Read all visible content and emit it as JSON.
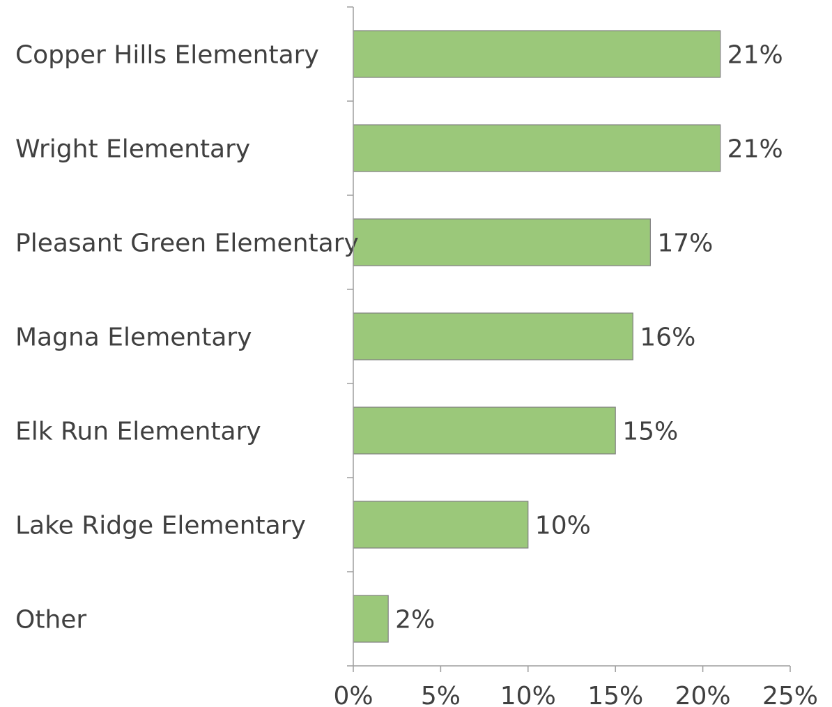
{
  "chart_data": {
    "type": "bar",
    "orientation": "horizontal",
    "categories": [
      "Copper Hills Elementary",
      "Wright Elementary",
      "Pleasant Green Elementary",
      "Magna Elementary",
      "Elk Run Elementary",
      "Lake Ridge Elementary",
      "Other"
    ],
    "values": [
      21,
      21,
      17,
      16,
      15,
      10,
      2
    ],
    "value_labels": [
      "21%",
      "21%",
      "17%",
      "16%",
      "15%",
      "10%",
      "2%"
    ],
    "xlim": [
      0,
      25
    ],
    "xticks": [
      0,
      5,
      10,
      15,
      20,
      25
    ],
    "xtick_labels": [
      "0%",
      "5%",
      "10%",
      "15%",
      "20%",
      "25%"
    ],
    "title": "",
    "xlabel": "",
    "ylabel": "",
    "grid": false,
    "legend": "none",
    "bar_color": "#9bc87a",
    "bar_border_color": "#7f7f7f",
    "axis_color": "#9e9e9e",
    "text_color": "#404040"
  }
}
